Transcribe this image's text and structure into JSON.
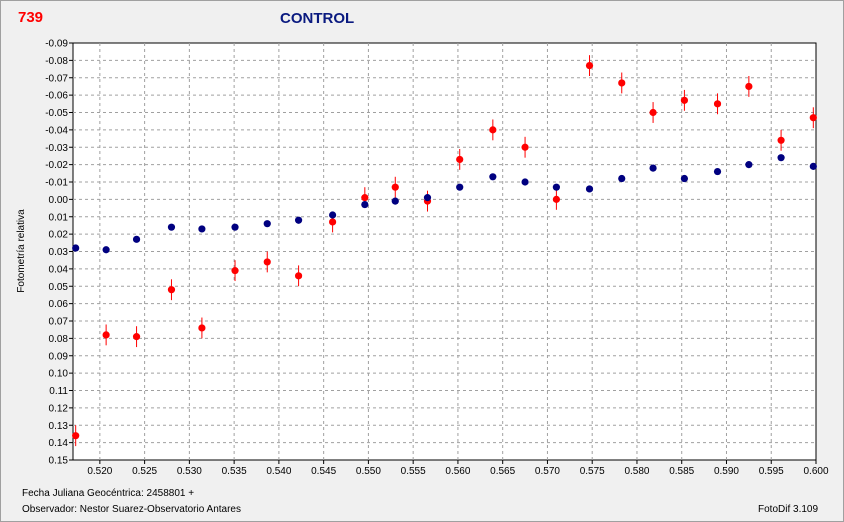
{
  "header": {
    "star_id": "739",
    "title": "CONTROL"
  },
  "footer": {
    "date_label": "Fecha Juliana Geocéntrica: 2458801 +",
    "observer_label": "Observador: Nestor Suarez-Observatorio Antares",
    "version_label": "FotoDif 3.109"
  },
  "colors": {
    "series_red": "#ff0000",
    "series_blue": "#000080",
    "grid": "#a0a0a0",
    "plot_bg": "#ffffff"
  },
  "chart_data": {
    "type": "scatter",
    "ylabel": "Fotometría relativa",
    "xlabel": "",
    "xlim": [
      0.517,
      0.6
    ],
    "ylim": [
      -0.09,
      0.15
    ],
    "y_inverted": true,
    "grid": true,
    "x_ticks": [
      "0.520",
      "0.525",
      "0.530",
      "0.535",
      "0.540",
      "0.545",
      "0.550",
      "0.555",
      "0.560",
      "0.565",
      "0.570",
      "0.575",
      "0.580",
      "0.585",
      "0.590",
      "0.595",
      "0.600"
    ],
    "y_ticks": [
      "-0.09",
      "-0.08",
      "-0.07",
      "-0.06",
      "-0.05",
      "-0.04",
      "-0.03",
      "-0.02",
      "-0.01",
      "0.00",
      "0.01",
      "0.02",
      "0.03",
      "0.04",
      "0.05",
      "0.06",
      "0.07",
      "0.08",
      "0.09",
      "0.10",
      "0.11",
      "0.12",
      "0.13",
      "0.14",
      "0.15"
    ],
    "series": [
      {
        "color": "#ff0000",
        "error_bars": true,
        "x": [
          0.5173,
          0.5207,
          0.5241,
          0.528,
          0.5314,
          0.5351,
          0.5387,
          0.5422,
          0.546,
          0.5496,
          0.553,
          0.5566,
          0.5602,
          0.5639,
          0.5675,
          0.571,
          0.5747,
          0.5783,
          0.5818,
          0.5853,
          0.589,
          0.5925,
          0.5961,
          0.5997
        ],
        "y": [
          0.136,
          0.078,
          0.079,
          0.052,
          0.074,
          0.041,
          0.036,
          0.044,
          0.013,
          -0.001,
          -0.007,
          0.001,
          -0.023,
          -0.04,
          -0.03,
          0.0,
          -0.077,
          -0.067,
          -0.05,
          -0.057,
          -0.055,
          -0.065,
          -0.034,
          -0.047
        ],
        "err": [
          0.006,
          0.006,
          0.006,
          0.006,
          0.006,
          0.006,
          0.006,
          0.006,
          0.006,
          0.006,
          0.006,
          0.006,
          0.006,
          0.006,
          0.006,
          0.006,
          0.006,
          0.006,
          0.006,
          0.006,
          0.006,
          0.006,
          0.006,
          0.006
        ]
      },
      {
        "color": "#000080",
        "error_bars": false,
        "x": [
          0.5173,
          0.5207,
          0.5241,
          0.528,
          0.5314,
          0.5351,
          0.5387,
          0.5422,
          0.546,
          0.5496,
          0.553,
          0.5566,
          0.5602,
          0.5639,
          0.5675,
          0.571,
          0.5747,
          0.5783,
          0.5818,
          0.5853,
          0.589,
          0.5925,
          0.5961,
          0.5997
        ],
        "y": [
          0.028,
          0.029,
          0.023,
          0.016,
          0.017,
          0.016,
          0.014,
          0.012,
          0.009,
          0.003,
          0.001,
          -0.001,
          -0.007,
          -0.013,
          -0.01,
          -0.007,
          -0.006,
          -0.012,
          -0.018,
          -0.012,
          -0.016,
          -0.02,
          -0.024,
          -0.019
        ]
      }
    ]
  }
}
